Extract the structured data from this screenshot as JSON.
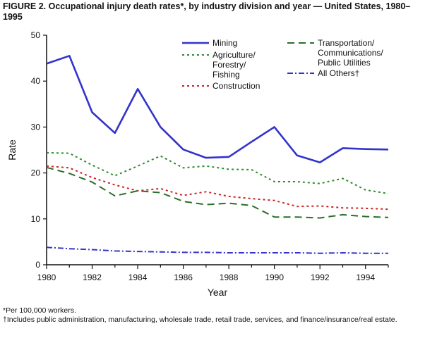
{
  "figure": {
    "title": "FIGURE 2. Occupational injury death rates*, by industry division and year — United States, 1980–1995",
    "footnotes": [
      "*Per 100,000 workers.",
      "†Includes public administration, manufacturing, wholesale trade, retail trade, services, and finance/insurance/real estate."
    ]
  },
  "chart_data": {
    "type": "line",
    "xlabel": "Year",
    "ylabel": "Rate",
    "xlim": [
      1980,
      1995
    ],
    "ylim": [
      0,
      50
    ],
    "x_ticks": [
      1980,
      1982,
      1984,
      1986,
      1988,
      1990,
      1992,
      1994
    ],
    "y_ticks": [
      0,
      10,
      20,
      30,
      40,
      50
    ],
    "grid": false,
    "legend_position": "top-right",
    "x": [
      1980,
      1981,
      1982,
      1983,
      1984,
      1985,
      1986,
      1987,
      1988,
      1989,
      1990,
      1991,
      1992,
      1993,
      1994,
      1995
    ],
    "series": [
      {
        "name": "Mining",
        "color": "#3333cc",
        "style": "solid",
        "values": [
          43.8,
          45.5,
          33.2,
          28.7,
          38.3,
          30.0,
          25.1,
          23.3,
          23.5,
          26.8,
          30.0,
          23.8,
          22.3,
          25.4,
          25.2,
          25.1
        ]
      },
      {
        "name": "Agriculture/ Forestry/ Fishing",
        "legend_lines": [
          "Agriculture/",
          "Forestry/",
          "Fishing"
        ],
        "color": "#2e8b2e",
        "style": "dotted",
        "values": [
          24.4,
          24.3,
          21.7,
          19.4,
          21.5,
          23.7,
          21.1,
          21.5,
          20.8,
          20.7,
          18.1,
          18.1,
          17.7,
          18.8,
          16.3,
          15.5
        ]
      },
      {
        "name": "Construction",
        "color": "#cc2222",
        "style": "dotted",
        "values": [
          21.5,
          21.1,
          19.0,
          17.4,
          16.1,
          16.6,
          15.1,
          15.9,
          14.9,
          14.4,
          14.0,
          12.7,
          12.8,
          12.4,
          12.3,
          12.1
        ]
      },
      {
        "name": "Transportation/ Communications/ Public Utilities",
        "legend_lines": [
          "Transportation/",
          "Communications/",
          "Public Utilities"
        ],
        "color": "#2a6e2a",
        "style": "dashed",
        "values": [
          21.2,
          19.9,
          18.0,
          15.0,
          16.1,
          15.7,
          13.8,
          13.1,
          13.4,
          12.9,
          10.4,
          10.4,
          10.2,
          10.9,
          10.5,
          10.3
        ]
      },
      {
        "name": "All Others†",
        "color": "#3333cc",
        "style": "dashdot",
        "values": [
          3.8,
          3.5,
          3.3,
          3.0,
          2.9,
          2.8,
          2.7,
          2.7,
          2.6,
          2.6,
          2.6,
          2.6,
          2.5,
          2.6,
          2.5,
          2.5
        ]
      }
    ]
  }
}
